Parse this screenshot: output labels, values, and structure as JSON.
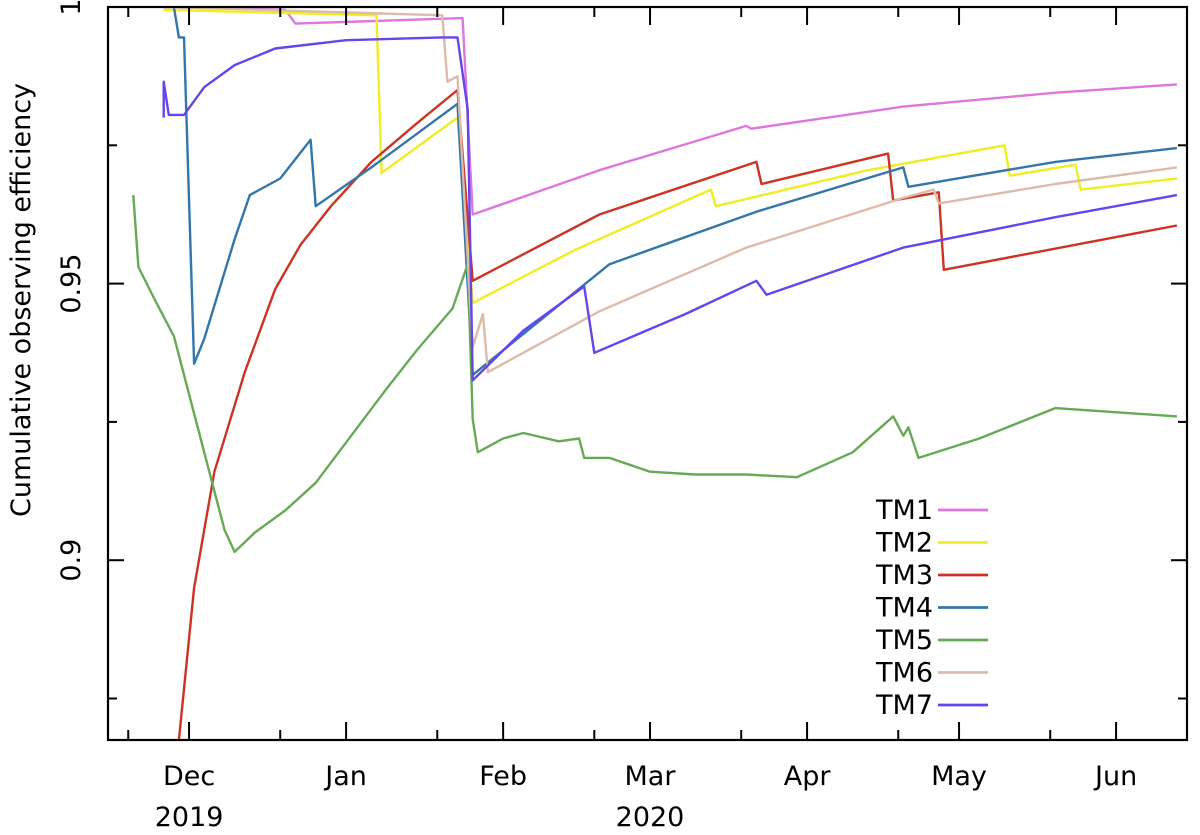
{
  "chart_data": {
    "type": "line",
    "ylabel": "Cumulative observing efficiency",
    "ylim": [
      0.8675,
      1.0
    ],
    "yticks": [
      {
        "value": 0.9,
        "label": "0.9"
      },
      {
        "value": 0.95,
        "label": "0.95"
      },
      {
        "value": 1.0,
        "label": "1"
      }
    ],
    "yminor_ticks": [
      0.875,
      0.925,
      0.975
    ],
    "xlim": [
      "2019-11-15",
      "2020-06-15"
    ],
    "xticks": [
      {
        "date": "2019-12-01",
        "label": "Dec"
      },
      {
        "date": "2020-01-01",
        "label": "Jan"
      },
      {
        "date": "2020-02-01",
        "label": "Feb"
      },
      {
        "date": "2020-03-01",
        "label": "Mar"
      },
      {
        "date": "2020-04-01",
        "label": "Apr"
      },
      {
        "date": "2020-05-01",
        "label": "May"
      },
      {
        "date": "2020-06-01",
        "label": "Jun"
      }
    ],
    "xminor_ticks": [
      "2019-11-19",
      "2019-12-19",
      "2020-01-19",
      "2020-02-19",
      "2020-03-19",
      "2020-04-19",
      "2020-05-19"
    ],
    "year_labels": [
      {
        "date": "2019-12-01",
        "label": "2019"
      },
      {
        "date": "2020-03-01",
        "label": "2020"
      }
    ],
    "grid": false,
    "legend": "bottom-right",
    "series": [
      {
        "name": "TM1",
        "color": "#dd77dd",
        "points": [
          [
            "2019-11-26",
            1.0
          ],
          [
            "2019-12-20",
            0.9995
          ],
          [
            "2019-12-22",
            0.997
          ],
          [
            "2020-01-24",
            0.998
          ],
          [
            "2020-01-26",
            0.9625
          ],
          [
            "2020-02-20",
            0.9705
          ],
          [
            "2020-03-20",
            0.9785
          ],
          [
            "2020-03-21",
            0.978
          ],
          [
            "2020-04-20",
            0.982
          ],
          [
            "2020-05-20",
            0.9845
          ],
          [
            "2020-06-13",
            0.986
          ]
        ]
      },
      {
        "name": "TM2",
        "color": "#eeee22",
        "points": [
          [
            "2019-11-26",
            0.9995
          ],
          [
            "2020-01-07",
            0.9985
          ],
          [
            "2020-01-08",
            0.97
          ],
          [
            "2020-01-23",
            0.98
          ],
          [
            "2020-01-26",
            0.9465
          ],
          [
            "2020-02-15",
            0.956
          ],
          [
            "2020-03-13",
            0.967
          ],
          [
            "2020-03-14",
            0.964
          ],
          [
            "2020-04-13",
            0.9705
          ],
          [
            "2020-05-10",
            0.975
          ],
          [
            "2020-05-11",
            0.9695
          ],
          [
            "2020-05-24",
            0.9715
          ],
          [
            "2020-05-25",
            0.967
          ],
          [
            "2020-06-13",
            0.969
          ]
        ]
      },
      {
        "name": "TM3",
        "color": "#cc3322",
        "points": [
          [
            "2019-11-29",
            0.8675
          ],
          [
            "2019-12-02",
            0.895
          ],
          [
            "2019-12-06",
            0.916
          ],
          [
            "2019-12-12",
            0.934
          ],
          [
            "2019-12-18",
            0.949
          ],
          [
            "2019-12-23",
            0.957
          ],
          [
            "2019-12-29",
            0.964
          ],
          [
            "2020-01-06",
            0.972
          ],
          [
            "2020-01-15",
            0.979
          ],
          [
            "2020-01-23",
            0.985
          ],
          [
            "2020-01-26",
            0.9505
          ],
          [
            "2020-02-20",
            0.9625
          ],
          [
            "2020-03-22",
            0.972
          ],
          [
            "2020-03-23",
            0.968
          ],
          [
            "2020-04-17",
            0.9735
          ],
          [
            "2020-04-18",
            0.965
          ],
          [
            "2020-04-27",
            0.9665
          ],
          [
            "2020-04-28",
            0.9525
          ],
          [
            "2020-06-13",
            0.9605
          ]
        ]
      },
      {
        "name": "TM4",
        "color": "#3377aa",
        "points": [
          [
            "2019-11-28",
            1.0
          ],
          [
            "2019-11-29",
            0.9945
          ],
          [
            "2019-11-30",
            0.9945
          ],
          [
            "2019-12-02",
            0.9355
          ],
          [
            "2019-12-04",
            0.94
          ],
          [
            "2019-12-10",
            0.958
          ],
          [
            "2019-12-13",
            0.966
          ],
          [
            "2019-12-19",
            0.969
          ],
          [
            "2019-12-25",
            0.976
          ],
          [
            "2019-12-26",
            0.964
          ],
          [
            "2020-01-06",
            0.971
          ],
          [
            "2020-01-23",
            0.9825
          ],
          [
            "2020-01-26",
            0.9335
          ],
          [
            "2020-02-22",
            0.9535
          ],
          [
            "2020-03-22",
            0.963
          ],
          [
            "2020-04-20",
            0.971
          ],
          [
            "2020-04-21",
            0.9675
          ],
          [
            "2020-05-20",
            0.972
          ],
          [
            "2020-06-13",
            0.9745
          ]
        ]
      },
      {
        "name": "TM5",
        "color": "#66aa55",
        "points": [
          [
            "2019-11-20",
            0.966
          ],
          [
            "2019-11-21",
            0.953
          ],
          [
            "2019-11-24",
            0.9475
          ],
          [
            "2019-11-28",
            0.9405
          ],
          [
            "2019-12-02",
            0.9265
          ],
          [
            "2019-12-05",
            0.916
          ],
          [
            "2019-12-08",
            0.9055
          ],
          [
            "2019-12-10",
            0.9015
          ],
          [
            "2019-12-14",
            0.905
          ],
          [
            "2019-12-20",
            0.909
          ],
          [
            "2019-12-26",
            0.914
          ],
          [
            "2020-01-02",
            0.9225
          ],
          [
            "2020-01-09",
            0.931
          ],
          [
            "2020-01-15",
            0.938
          ],
          [
            "2020-01-22",
            0.9455
          ],
          [
            "2020-01-25",
            0.9535
          ],
          [
            "2020-01-26",
            0.9255
          ],
          [
            "2020-01-27",
            0.9195
          ],
          [
            "2020-02-01",
            0.922
          ],
          [
            "2020-02-05",
            0.923
          ],
          [
            "2020-02-12",
            0.9215
          ],
          [
            "2020-02-16",
            0.922
          ],
          [
            "2020-02-17",
            0.9185
          ],
          [
            "2020-02-22",
            0.9185
          ],
          [
            "2020-03-01",
            0.916
          ],
          [
            "2020-03-10",
            0.9155
          ],
          [
            "2020-03-20",
            0.9155
          ],
          [
            "2020-03-30",
            0.915
          ],
          [
            "2020-04-10",
            0.9195
          ],
          [
            "2020-04-18",
            0.926
          ],
          [
            "2020-04-20",
            0.9225
          ],
          [
            "2020-04-21",
            0.924
          ],
          [
            "2020-04-23",
            0.9185
          ],
          [
            "2020-05-05",
            0.922
          ],
          [
            "2020-05-20",
            0.9275
          ],
          [
            "2020-06-13",
            0.926
          ]
        ]
      },
      {
        "name": "TM6",
        "color": "#ddbbaa",
        "points": [
          [
            "2019-11-26",
            1.0
          ],
          [
            "2020-01-20",
            0.9985
          ],
          [
            "2020-01-21",
            0.9865
          ],
          [
            "2020-01-23",
            0.9875
          ],
          [
            "2020-01-26",
            0.9385
          ],
          [
            "2020-01-28",
            0.9445
          ],
          [
            "2020-01-29",
            0.934
          ],
          [
            "2020-02-20",
            0.945
          ],
          [
            "2020-03-20",
            0.9565
          ],
          [
            "2020-04-20",
            0.9655
          ],
          [
            "2020-04-26",
            0.967
          ],
          [
            "2020-04-27",
            0.9645
          ],
          [
            "2020-05-20",
            0.968
          ],
          [
            "2020-06-13",
            0.971
          ]
        ]
      },
      {
        "name": "TM7",
        "color": "#6644ee",
        "points": [
          [
            "2019-11-26",
            0.98
          ],
          [
            "2019-11-26",
            0.9865
          ],
          [
            "2019-11-27",
            0.9805
          ],
          [
            "2019-11-30",
            0.9805
          ],
          [
            "2019-12-04",
            0.9855
          ],
          [
            "2019-12-10",
            0.9895
          ],
          [
            "2019-12-18",
            0.9925
          ],
          [
            "2020-01-01",
            0.994
          ],
          [
            "2020-01-20",
            0.9945
          ],
          [
            "2020-01-23",
            0.9945
          ],
          [
            "2020-01-25",
            0.9815
          ],
          [
            "2020-01-26",
            0.9325
          ],
          [
            "2020-02-05",
            0.9415
          ],
          [
            "2020-02-17",
            0.9495
          ],
          [
            "2020-02-19",
            0.9375
          ],
          [
            "2020-03-08",
            0.9445
          ],
          [
            "2020-03-22",
            0.9505
          ],
          [
            "2020-03-24",
            0.948
          ],
          [
            "2020-04-20",
            0.9565
          ],
          [
            "2020-05-20",
            0.962
          ],
          [
            "2020-06-13",
            0.966
          ]
        ]
      }
    ]
  }
}
